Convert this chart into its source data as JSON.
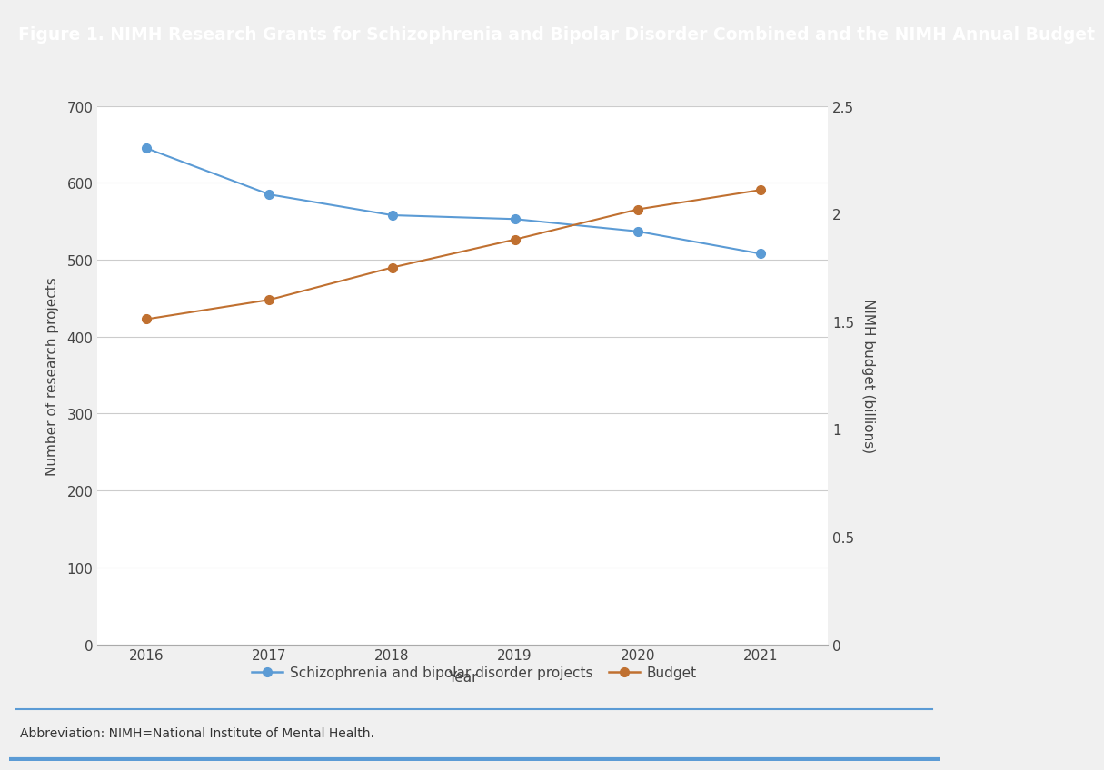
{
  "title": "Figure 1. NIMH Research Grants for Schizophrenia and Bipolar Disorder Combined and the NIMH Annual Budget",
  "title_bg_color": "#1a4a72",
  "title_text_color": "#ffffff",
  "title_fontsize": 13.5,
  "years": [
    2016,
    2017,
    2018,
    2019,
    2020,
    2021
  ],
  "projects": [
    645,
    585,
    558,
    553,
    537,
    508
  ],
  "budget": [
    1.51,
    1.6,
    1.75,
    1.88,
    2.02,
    2.11
  ],
  "projects_color": "#5b9bd5",
  "budget_color": "#c07030",
  "left_ylim": [
    0,
    700
  ],
  "left_yticks": [
    0,
    100,
    200,
    300,
    400,
    500,
    600,
    700
  ],
  "right_ylim": [
    0,
    2.5
  ],
  "right_yticks": [
    0,
    0.5,
    1.0,
    1.5,
    2.0,
    2.5
  ],
  "xlabel": "Year",
  "ylabel_left": "Number of research projects",
  "ylabel_right": "NIMH budget (billions)",
  "legend_label_projects": "Schizophrenia and bipolar disorder projects",
  "legend_label_budget": "Budget",
  "abbreviation": "Abbreviation: NIMH=National Institute of Mental Health.",
  "bg_color": "#f0f0f0",
  "plot_bg_color": "#ffffff",
  "grid_color": "#cccccc",
  "marker_size": 7,
  "line_width": 1.5,
  "border_color_top": "#5b9bd5",
  "border_color_bottom": "#5b9bd5"
}
